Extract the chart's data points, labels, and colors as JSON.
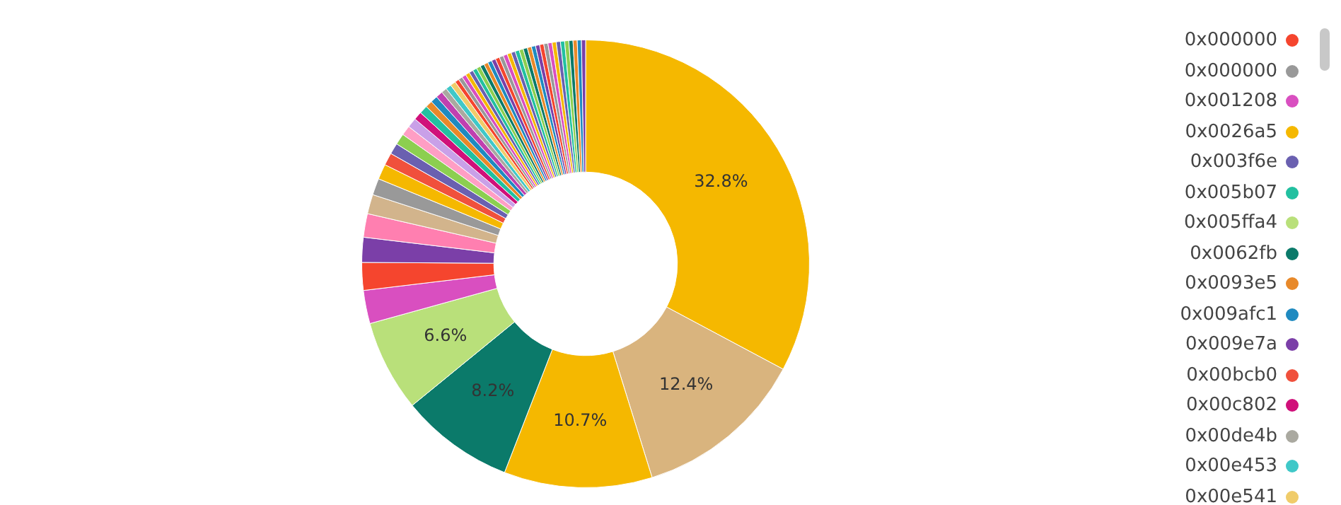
{
  "chart_data": {
    "type": "donut",
    "legend": "right",
    "categories": [
      "0x0026a5",
      null,
      null,
      "0x0062fb",
      "0x005ffa4",
      "0x001208",
      "0x000000",
      "0x009e7a",
      null,
      null,
      "0x000000",
      null,
      "0x00bcb0",
      "0x003f6e",
      null,
      null,
      null,
      "0x00c802",
      "0x005b07",
      "0x0093e5",
      "0x009afc1",
      null,
      "0x00de4b",
      "0x00e453",
      "0x00e541",
      null,
      null,
      null,
      null,
      null,
      null,
      null,
      null,
      null,
      null,
      null,
      null,
      null,
      null,
      null,
      null,
      null,
      null,
      null,
      null,
      null,
      null,
      null,
      null,
      null,
      null,
      null,
      null,
      null,
      null,
      null,
      null,
      null
    ],
    "values": [
      32.8,
      12.4,
      10.7,
      8.2,
      6.6,
      2.4,
      2.0,
      1.8,
      1.7,
      1.4,
      1.2,
      1.1,
      0.9,
      0.8,
      0.8,
      0.7,
      0.7,
      0.6,
      0.6,
      0.5,
      0.5,
      0.5,
      0.4,
      0.4,
      0.4,
      0.3,
      0.3,
      0.3,
      0.3,
      0.3,
      0.3,
      0.3,
      0.3,
      0.3,
      0.3,
      0.3,
      0.3,
      0.3,
      0.3,
      0.3,
      0.3,
      0.3,
      0.3,
      0.3,
      0.3,
      0.3,
      0.3,
      0.3,
      0.3,
      0.3,
      0.3,
      0.3,
      0.3,
      0.3,
      0.3,
      0.3,
      0.3,
      0.3
    ],
    "colors": [
      "#f5b800",
      "#d9b47e",
      "#f5b800",
      "#0b7a6a",
      "#b9e07a",
      "#d94fc0",
      "#f5452e",
      "#7b3fa8",
      "#ff7fb0",
      "#d2b48c",
      "#999999",
      "#f5b800",
      "#f0503c",
      "#6a60b0",
      "#8ccf50",
      "#ff9ec4",
      "#c9a0e8",
      "#d0107a",
      "#22c0a0",
      "#e8892a",
      "#1f8ac0",
      "#c040b0",
      "#aaa9a0",
      "#40c8c8",
      "#f0cc6a",
      "#f5452e",
      "#999999",
      "#d94fc0",
      "#f5b800",
      "#6a60b0",
      "#22c0a0",
      "#8ccf50",
      "#0b7a6a",
      "#e8892a",
      "#1f8ac0",
      "#7b3fa8",
      "#f5452e",
      "#999999",
      "#d94fc0",
      "#f5b800",
      "#6a60b0",
      "#22c0a0",
      "#8ccf50",
      "#0b7a6a",
      "#e8892a",
      "#1f8ac0",
      "#7b3fa8",
      "#f5452e",
      "#999999",
      "#d94fc0",
      "#f5b800",
      "#6a60b0",
      "#22c0a0",
      "#8ccf50",
      "#0b7a6a",
      "#e8892a",
      "#1f8ac0",
      "#7b3fa8"
    ],
    "value_labels": [
      "32.8%",
      "12.4%",
      "10.7%",
      "8.2%",
      "6.6%",
      null,
      null,
      null,
      null,
      null,
      null,
      null,
      null,
      null,
      null,
      null,
      null,
      null,
      null,
      null,
      null,
      null,
      null,
      null,
      null,
      null,
      null,
      null,
      null,
      null,
      null,
      null,
      null,
      null,
      null,
      null,
      null,
      null,
      null,
      null,
      null,
      null,
      null,
      null,
      null,
      null,
      null,
      null,
      null,
      null,
      null,
      null,
      null,
      null,
      null,
      null,
      null,
      null
    ]
  }
}
